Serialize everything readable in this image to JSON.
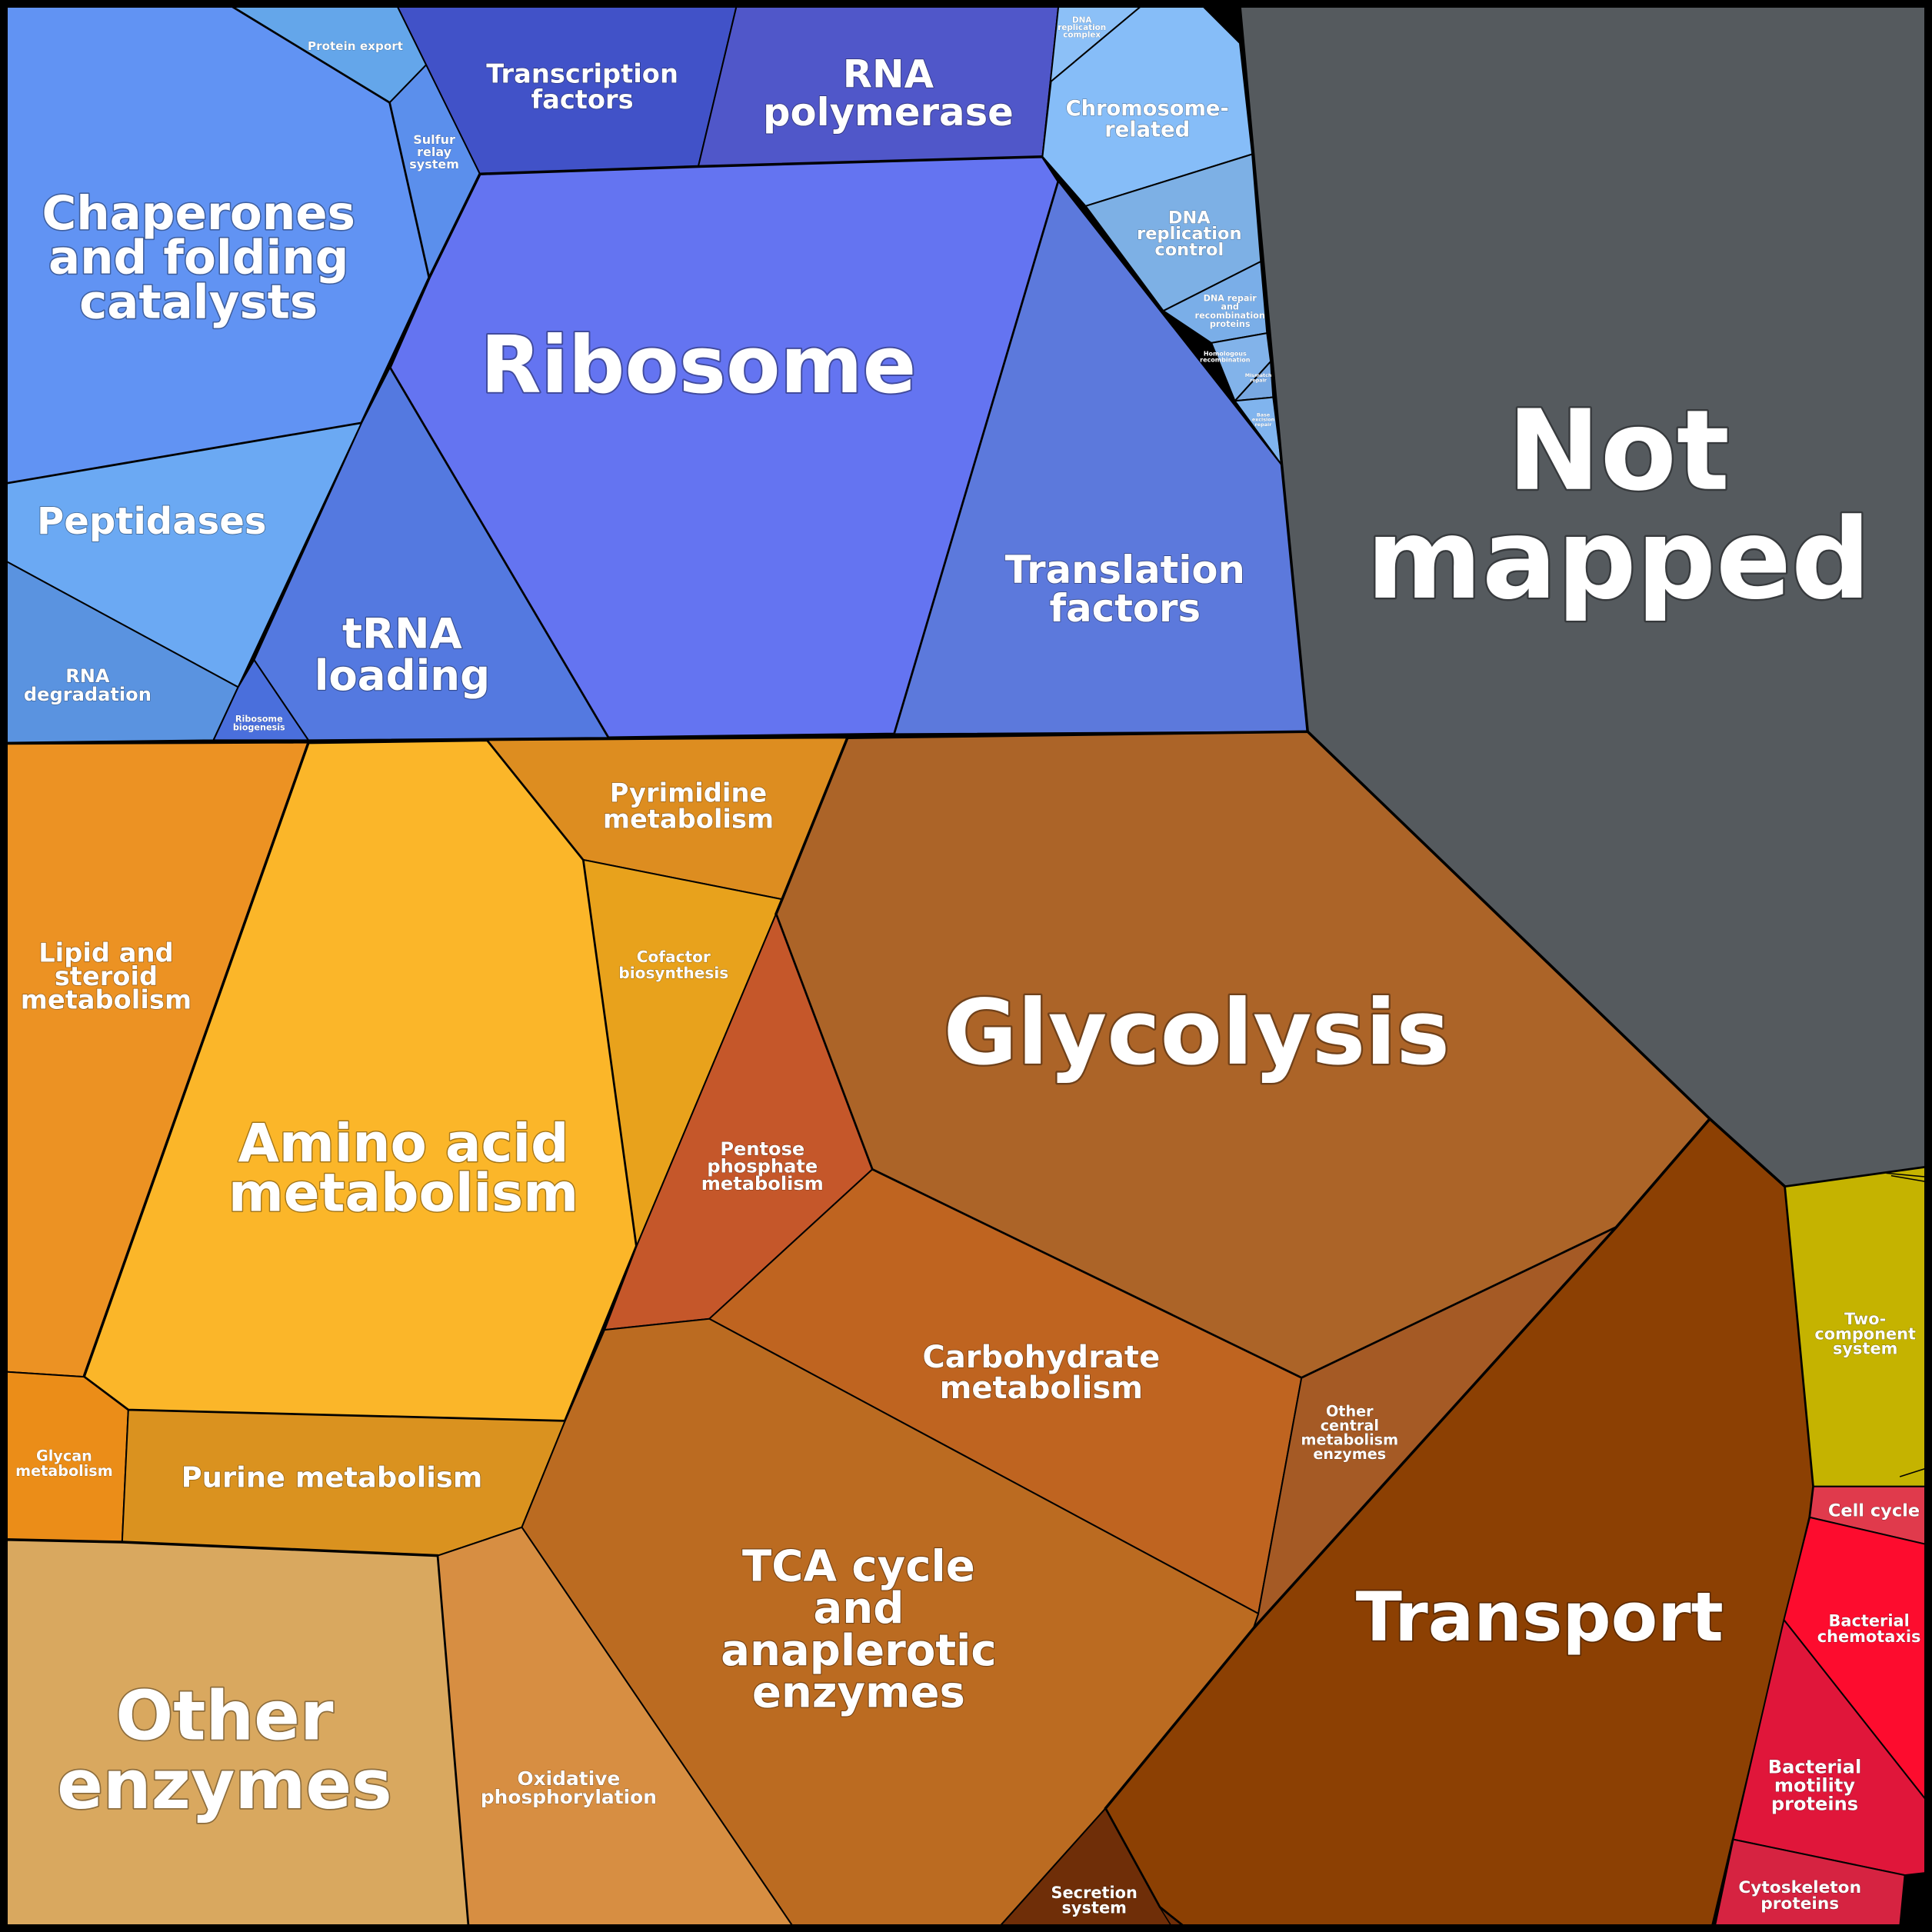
{
  "diagram": {
    "kind": "proteomaps-voronoi-treemap",
    "colors": {
      "background": "#000000",
      "information_processing": "#6193f3",
      "metabolism": "#e8962a",
      "not_mapped": "#555a5e",
      "environmental": "#c5b300",
      "cellular": "#e81a3a"
    },
    "cells": [
      {
        "name": "Chaperones and folding catalysts",
        "lines": [
          "Chaperones",
          "and folding",
          "catalysts"
        ],
        "color": "#6193f3"
      },
      {
        "name": "Protein export",
        "lines": [
          "Protein export"
        ],
        "color": "#64a6ea"
      },
      {
        "name": "Sulfur relay system",
        "lines": [
          "Sulfur",
          "relay",
          "system"
        ],
        "color": "#5b8fec"
      },
      {
        "name": "Transcription factors",
        "lines": [
          "Transcription",
          "factors"
        ],
        "color": "#4152c8"
      },
      {
        "name": "RNA polymerase",
        "lines": [
          "RNA",
          "polymerase"
        ],
        "color": "#5057c9"
      },
      {
        "name": "Ribosome",
        "lines": [
          "Ribosome"
        ],
        "color": "#6474f1"
      },
      {
        "name": "Peptidases",
        "lines": [
          "Peptidases"
        ],
        "color": "#6ba9f3"
      },
      {
        "name": "RNA degradation",
        "lines": [
          "RNA",
          "degradation"
        ],
        "color": "#5a93e0"
      },
      {
        "name": "tRNA loading",
        "lines": [
          "tRNA",
          "loading"
        ],
        "color": "#5479e0"
      },
      {
        "name": "Ribosome biogenesis",
        "lines": [
          "Ribosome",
          "biogenesis"
        ],
        "color": "#4a6fdc"
      },
      {
        "name": "Translation factors",
        "lines": [
          "Translation",
          "factors"
        ],
        "color": "#5c79dc"
      },
      {
        "name": "DNA replication complex",
        "lines": [
          "DNA",
          "replication",
          "complex"
        ],
        "color": "#8cc0f7"
      },
      {
        "name": "Chromosome-related",
        "lines": [
          "Chromosome-",
          "related"
        ],
        "color": "#86bdf8"
      },
      {
        "name": "DNA replication control",
        "lines": [
          "DNA",
          "replication",
          "control"
        ],
        "color": "#7db0e5"
      },
      {
        "name": "DNA repair and recombination proteins",
        "lines": [
          "DNA repair",
          "and",
          "recombination",
          "proteins"
        ],
        "color": "#7aaee8"
      },
      {
        "name": "Homologous recombination",
        "lines": [
          "Homologous",
          "recombination"
        ],
        "color": "#82b3ea"
      },
      {
        "name": "Mismatch repair",
        "lines": [
          "Mismatch",
          "repair"
        ],
        "color": "#78a8e2"
      },
      {
        "name": "Base excision repair",
        "lines": [
          "Base",
          "excision",
          "repair"
        ],
        "color": "#80b4ee"
      },
      {
        "name": "Not mapped",
        "lines": [
          "Not",
          "mapped"
        ],
        "color": "#555a5e"
      },
      {
        "name": "Lipid and steroid metabolism",
        "lines": [
          "Lipid and",
          "steroid",
          "metabolism"
        ],
        "color": "#ec9223"
      },
      {
        "name": "Amino acid metabolism",
        "lines": [
          "Amino acid",
          "metabolism"
        ],
        "color": "#fbb629"
      },
      {
        "name": "Pyrimidine metabolism",
        "lines": [
          "Pyrimidine",
          "metabolism"
        ],
        "color": "#dd8d20"
      },
      {
        "name": "Cofactor biosynthesis",
        "lines": [
          "Cofactor",
          "biosynthesis"
        ],
        "color": "#e8a21c"
      },
      {
        "name": "Glycolysis",
        "lines": [
          "Glycolysis"
        ],
        "color": "#ac6428"
      },
      {
        "name": "Pentose phosphate metabolism",
        "lines": [
          "Pentose",
          "phosphate",
          "metabolism"
        ],
        "color": "#c5572a"
      },
      {
        "name": "Carbohydrate metabolism",
        "lines": [
          "Carbohydrate",
          "metabolism"
        ],
        "color": "#bf6420"
      },
      {
        "name": "Other central metabolism enzymes",
        "lines": [
          "Other",
          "central",
          "metabolism",
          "enzymes"
        ],
        "color": "#a55a25"
      },
      {
        "name": "Glycan metabolism",
        "lines": [
          "Glycan",
          "metabolism"
        ],
        "color": "#eb8d18"
      },
      {
        "name": "Purine metabolism",
        "lines": [
          "Purine metabolism"
        ],
        "color": "#da921f"
      },
      {
        "name": "TCA cycle and anaplerotic enzymes",
        "lines": [
          "TCA cycle",
          "and",
          "anaplerotic",
          "enzymes"
        ],
        "color": "#bb6b21"
      },
      {
        "name": "Other enzymes",
        "lines": [
          "Other",
          "enzymes"
        ],
        "color": "#d9a85f"
      },
      {
        "name": "Oxidative phosphorylation",
        "lines": [
          "Oxidative",
          "phosphorylation"
        ],
        "color": "#d78e42"
      },
      {
        "name": "Transport",
        "lines": [
          "Transport"
        ],
        "color": "#8c4003"
      },
      {
        "name": "Secretion system",
        "lines": [
          "Secretion",
          "system"
        ],
        "color": "#6f2e08"
      },
      {
        "name": "Two-component system",
        "lines": [
          "Two-",
          "component",
          "system"
        ],
        "color": "#c5b300"
      },
      {
        "name": "Cell cycle",
        "lines": [
          "Cell cycle"
        ],
        "color": "#e03a4c"
      },
      {
        "name": "Bacterial chemotaxis",
        "lines": [
          "Bacterial",
          "chemotaxis"
        ],
        "color": "#fd0c2e"
      },
      {
        "name": "Bacterial motility proteins",
        "lines": [
          "Bacterial",
          "motility",
          "proteins"
        ],
        "color": "#e0163a"
      },
      {
        "name": "Cytoskeleton proteins",
        "lines": [
          "Cytoskeleton",
          "proteins"
        ],
        "color": "#d62341"
      }
    ]
  }
}
